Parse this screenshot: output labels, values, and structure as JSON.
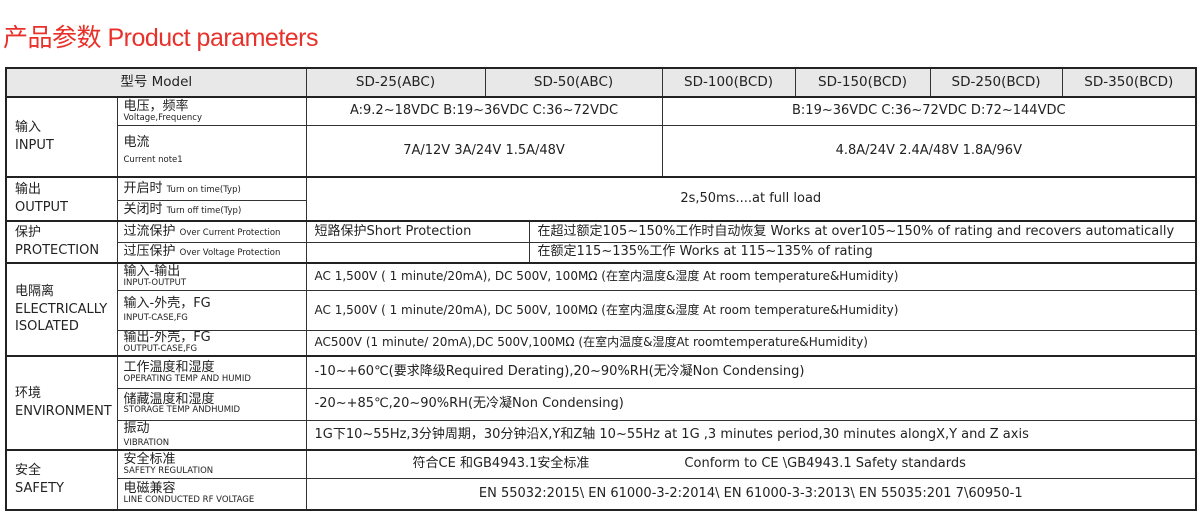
{
  "title": "产品参数 Product parameters",
  "header": {
    "model_label": "型号 Model",
    "models": [
      "SD-25(ABC)",
      "SD-50(ABC)",
      "SD-100(BCD)",
      "SD-150(BCD)",
      "SD-250(BCD)",
      "SD-350(BCD)"
    ]
  },
  "input": {
    "category_zh": "输入",
    "category_en": "INPUT",
    "voltage": {
      "zh": "电压，频率",
      "en": "Voltage,Frequency",
      "value_a": "A:9.2~18VDC  B:19~36VDC   C:36~72VDC",
      "value_b": "B:19~36VDC  C:36~72VDC  D:72~144VDC"
    },
    "current": {
      "zh": "电流",
      "en": "Current    note1",
      "value_a": "7A/12V  3A/24V  1.5A/48V",
      "value_b": "4.8A/24V  2.4A/48V  1.8A/96V"
    }
  },
  "output": {
    "category_zh": "输出",
    "category_en": "OUTPUT",
    "turn_on": {
      "zh": "开启时",
      "en": "Turn on time(Typ)"
    },
    "turn_off": {
      "zh": "关闭时",
      "en": "Turn off time(Typ)"
    },
    "value": "2s,50ms....at full load"
  },
  "protection": {
    "category_zh": "保护",
    "category_en": "PROTECTION",
    "ocp": {
      "zh": "过流保护",
      "en": "Over Current Protection",
      "value_a": "短路保护Short Protection",
      "value_b": "在超过额定105~150%工作时自动恢复  Works at over105~150% of rating and recovers automatically"
    },
    "ovp": {
      "zh": "过压保护",
      "en": "Over Voltage Protection",
      "value_a": "",
      "value_b": "在额定115~135%工作  Works at 115~135% of rating"
    }
  },
  "isolation": {
    "category_zh": "电隔离",
    "category_en1": "ELECTRICALLY",
    "category_en2": "ISOLATED",
    "rows": [
      {
        "zh": "输入-输出",
        "en": "INPUT-OUTPUT",
        "value": "AC 1,500V ( 1 minute/20mA), DC 500V, 100MΩ  (在室内温度&湿度 At room temperature&Humidity)"
      },
      {
        "zh": "输入-外壳，FG",
        "en": "INPUT-CASE,FG",
        "value": "AC 1,500V ( 1 minute/20mA), DC 500V, 100MΩ  (在室内温度&湿度 At room temperature&Humidity)"
      },
      {
        "zh": "输出-外壳，FG",
        "en": "OUTPUT-CASE,FG",
        "value": "AC500V (1  minute/  20mA),DC 500V,100MΩ (在室内温度&湿度At  roomtemperature&Humidity)"
      }
    ]
  },
  "environment": {
    "category_zh": "环境",
    "category_en": "ENVIRONMENT",
    "rows": [
      {
        "zh": "工作温度和湿度",
        "en": "OPERATING TEMP AND HUMID",
        "value": "-10~+60℃(要求降级Required Derating),20~90%RH(无冷凝Non Condensing)"
      },
      {
        "zh": "储藏温度和湿度",
        "en": "STORAGE  TEMP ANDHUMID",
        "value": "-20~+85℃,20~90%RH(无冷凝Non Condensing)"
      },
      {
        "zh": "振动",
        "en": "VIBRATION",
        "value": "1G下10~55Hz,3分钟周期，30分钟沿X,Y和Z轴 10~55Hz at 1G ,3 minutes period,30 minutes alongX,Y and Z axis"
      }
    ]
  },
  "safety": {
    "category_zh": "安全",
    "category_en": "SAFETY",
    "regulation": {
      "zh": "安全标准",
      "en": "SAFETY REGULATION",
      "value_zh": "符合CE 和GB4943.1安全标准",
      "value_en": "Conform to CE \\GB4943.1 Safety standards"
    },
    "emc": {
      "zh": "电磁兼容",
      "en": "LINE CONDUCTED RF VOLTAGE",
      "value": "EN 55032:2015\\ EN 61000-3-2:2014\\ EN 61000-3-3:2013\\ EN 55035:201 7\\60950-1"
    }
  }
}
